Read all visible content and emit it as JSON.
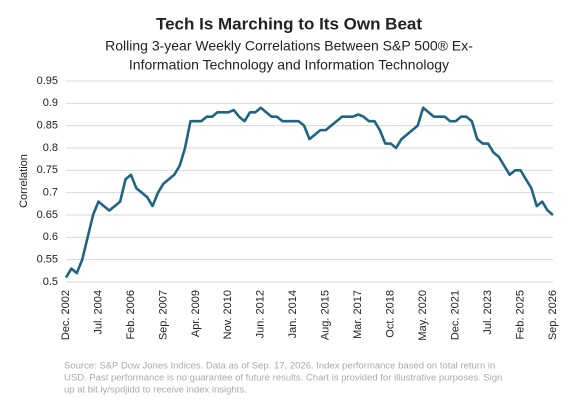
{
  "chart_data": {
    "type": "line",
    "title": "Tech Is Marching to Its Own Beat",
    "subtitle": [
      "Rolling 3-year Weekly Correlations Between S&P 500® Ex-",
      "Information Technology and Information Technology"
    ],
    "y_label": "Correlation",
    "categories": [
      "Dec. 2002",
      null,
      null,
      null,
      null,
      null,
      "Jul. 2004",
      null,
      null,
      null,
      null,
      null,
      "Feb. 2006",
      null,
      null,
      null,
      null,
      null,
      "Sep. 2007",
      null,
      null,
      null,
      null,
      null,
      "Apr. 2009",
      null,
      null,
      null,
      null,
      null,
      "Nov. 2010",
      null,
      null,
      null,
      null,
      null,
      "Jun. 2012",
      null,
      null,
      null,
      null,
      null,
      "Jan. 2014",
      null,
      null,
      null,
      null,
      null,
      "Aug. 2015",
      null,
      null,
      null,
      null,
      null,
      "Mar. 2017",
      null,
      null,
      null,
      null,
      null,
      "Oct. 2018",
      null,
      null,
      null,
      null,
      null,
      "May. 2020",
      null,
      null,
      null,
      null,
      null,
      "Dec. 2021",
      null,
      null,
      null,
      null,
      null,
      "Jul. 2023",
      null,
      null,
      null,
      null,
      null,
      "Feb. 2025",
      null,
      null,
      null,
      null,
      null,
      "Sep. 2026"
    ],
    "values": [
      0.51,
      0.53,
      0.52,
      0.55,
      0.6,
      0.65,
      0.68,
      0.67,
      0.66,
      0.67,
      0.68,
      0.73,
      0.74,
      0.71,
      0.7,
      0.69,
      0.67,
      0.7,
      0.72,
      0.73,
      0.74,
      0.76,
      0.8,
      0.86,
      0.86,
      0.86,
      0.87,
      0.87,
      0.88,
      0.88,
      0.88,
      0.885,
      0.87,
      0.86,
      0.88,
      0.88,
      0.89,
      0.88,
      0.87,
      0.87,
      0.86,
      0.86,
      0.86,
      0.86,
      0.85,
      0.82,
      0.83,
      0.84,
      0.84,
      0.85,
      0.86,
      0.87,
      0.87,
      0.87,
      0.875,
      0.87,
      0.86,
      0.86,
      0.84,
      0.81,
      0.81,
      0.8,
      0.82,
      0.83,
      0.84,
      0.85,
      0.89,
      0.88,
      0.87,
      0.87,
      0.87,
      0.86,
      0.86,
      0.87,
      0.87,
      0.86,
      0.82,
      0.81,
      0.81,
      0.79,
      0.78,
      0.76,
      0.74,
      0.75,
      0.75,
      0.73,
      0.71,
      0.67,
      0.68,
      0.66,
      0.65
    ],
    "color": "#1f6582",
    "ylim": [
      0.5,
      0.95
    ],
    "yticks": [
      0.5,
      0.55,
      0.6,
      0.65,
      0.7,
      0.75,
      0.8,
      0.85,
      0.9,
      0.95
    ],
    "grid": true,
    "source": [
      "Source: S&P Dow Jones Indices. Data as of Sep. 17, 2026. Index performance based on total return in",
      "USD.  Past performance is no guarantee of future results. Chart is provided for illustrative purposes. Sign",
      "up at bit.ly/spdjidd to receive index insights."
    ]
  }
}
